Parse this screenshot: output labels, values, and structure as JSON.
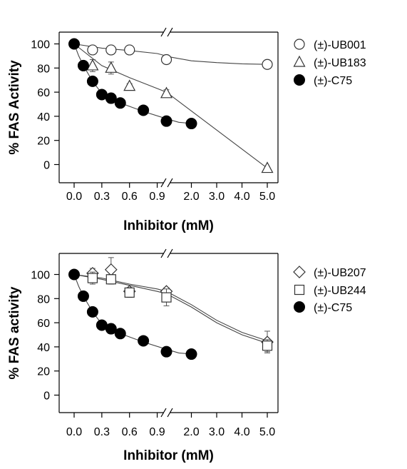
{
  "chart_data": [
    {
      "type": "scatter",
      "xlabel": "Inhibitor (mM)",
      "ylabel": "% FAS Activity",
      "ylim": [
        -10,
        110
      ],
      "yticks": [
        0,
        20,
        40,
        60,
        80,
        100
      ],
      "xticks": [
        "0.0",
        "0.3",
        "0.6",
        "0.9",
        "2.0",
        "3.0",
        "4.0",
        "5.0"
      ],
      "x_break": "between 0.9 and 2.0",
      "legend_position": "right",
      "series": [
        {
          "name": "(±)-UB001",
          "marker": "circle-open",
          "x": [
            0.0,
            0.2,
            0.4,
            0.6,
            1.0,
            5.0
          ],
          "y": [
            100,
            95,
            95,
            95,
            87,
            83
          ],
          "err": [
            0,
            2,
            2,
            2,
            3,
            2
          ],
          "fit_x": [
            0,
            0.3,
            0.6,
            0.9,
            1.05,
            2.0,
            3.0,
            4.0,
            5.0
          ],
          "fit_y": [
            100,
            96.5,
            94.5,
            92,
            89,
            86,
            84.5,
            83.5,
            83
          ]
        },
        {
          "name": "(±)-UB183",
          "marker": "triangle-open",
          "x": [
            0.2,
            0.4,
            0.6,
            1.0,
            5.0
          ],
          "y": [
            82,
            80,
            65,
            59,
            -3
          ],
          "err": [
            5,
            5,
            2,
            3,
            1
          ],
          "fit_x": [
            0,
            0.3,
            0.6,
            0.9,
            1.0,
            5.0
          ],
          "fit_y": [
            100,
            82,
            72,
            63,
            60,
            -3
          ]
        },
        {
          "name": "(±)-C75",
          "marker": "circle-filled",
          "x": [
            0.0,
            0.1,
            0.2,
            0.3,
            0.4,
            0.5,
            0.75,
            1.0,
            2.0
          ],
          "y": [
            100,
            82,
            69,
            58,
            55,
            51,
            45,
            36,
            34
          ],
          "err": [
            0,
            0,
            0,
            0,
            4,
            0,
            0,
            0,
            0
          ],
          "fit_x": [
            0,
            0.05,
            0.1,
            0.2,
            0.3,
            0.4,
            0.5,
            0.75,
            1.0,
            1.5,
            2.0
          ],
          "fit_y": [
            100,
            90,
            82,
            69,
            59,
            55,
            51,
            44,
            38,
            35,
            34
          ]
        }
      ]
    },
    {
      "type": "scatter",
      "xlabel": "Inhibitor  (mM)",
      "ylabel": "% FAS activity",
      "ylim": [
        -10,
        120
      ],
      "yticks": [
        0,
        20,
        40,
        60,
        80,
        100
      ],
      "xticks": [
        "0.0",
        "0.3",
        "0.6",
        "0.9",
        "2.0",
        "3.0",
        "4.0",
        "5.0"
      ],
      "x_break": "between 0.9 and 2.0",
      "legend_position": "right",
      "series": [
        {
          "name": "(±)-UB207",
          "marker": "diamond-open",
          "x": [
            0.2,
            0.4,
            0.6,
            1.0,
            5.0
          ],
          "y": [
            101,
            104,
            86,
            86,
            44
          ],
          "err": [
            4,
            10,
            3,
            3,
            9
          ],
          "fit_x": [
            0,
            0.3,
            0.6,
            0.9,
            1.0,
            2.0,
            3.0,
            4.0,
            5.0
          ],
          "fit_y": [
            100,
            97,
            92,
            88,
            86,
            75,
            62,
            52,
            45
          ]
        },
        {
          "name": "(±)-UB244",
          "marker": "square-open",
          "x": [
            0.2,
            0.4,
            0.6,
            1.0,
            5.0
          ],
          "y": [
            97,
            96,
            85,
            81,
            41
          ],
          "err": [
            5,
            4,
            4,
            7,
            5
          ],
          "fit_x": [
            0,
            0.3,
            0.6,
            0.9,
            1.0,
            2.0,
            3.0,
            4.0,
            5.0
          ],
          "fit_y": [
            100,
            96,
            91,
            86,
            84,
            73,
            60,
            50,
            43
          ]
        },
        {
          "name": "(±)-C75",
          "marker": "circle-filled",
          "x": [
            0.0,
            0.1,
            0.2,
            0.3,
            0.4,
            0.5,
            0.75,
            1.0,
            2.0
          ],
          "y": [
            100,
            82,
            69,
            58,
            55,
            51,
            45,
            36,
            34
          ],
          "err": [
            0,
            0,
            0,
            0,
            4,
            0,
            0,
            0,
            0
          ],
          "fit_x": [
            0,
            0.05,
            0.1,
            0.2,
            0.3,
            0.4,
            0.5,
            0.75,
            1.0,
            1.5,
            2.0
          ],
          "fit_y": [
            100,
            90,
            82,
            69,
            59,
            55,
            51,
            44,
            38,
            35,
            34
          ]
        }
      ]
    }
  ]
}
